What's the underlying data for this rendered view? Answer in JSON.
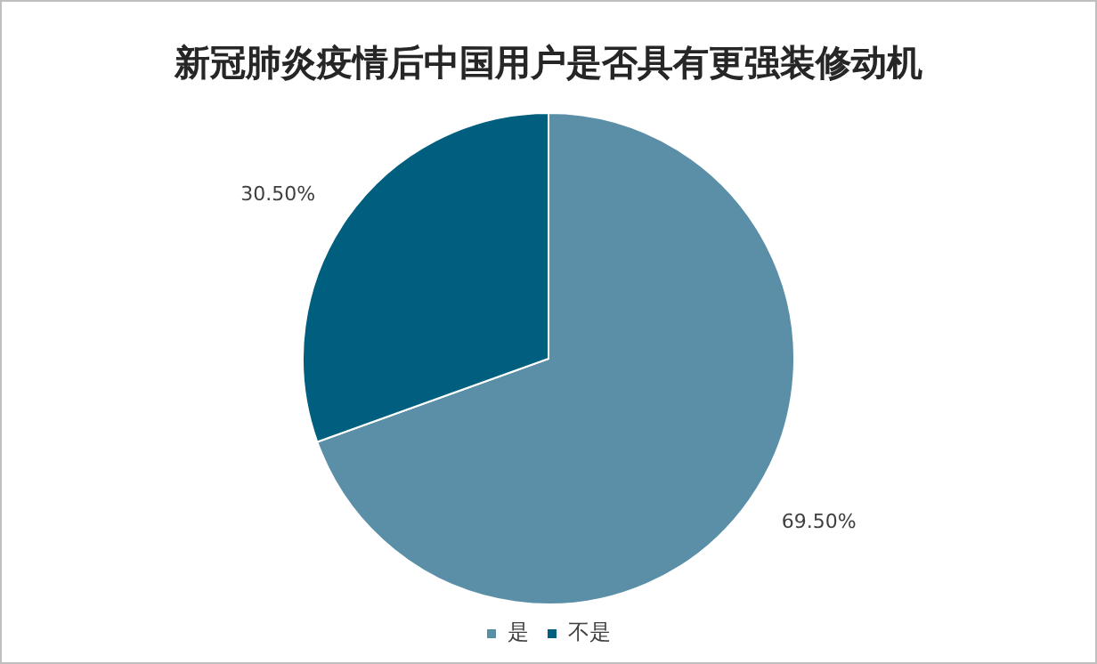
{
  "chart_data": {
    "type": "pie",
    "title": "新冠肺炎疫情后中国用户是否具有更强装修动机",
    "categories": [
      "是",
      "不是"
    ],
    "values": [
      69.5,
      30.5
    ],
    "colors": [
      "#5b8fa8",
      "#005f7f"
    ],
    "value_labels": [
      "69.50%",
      "30.50%"
    ],
    "legend": "bottom"
  }
}
